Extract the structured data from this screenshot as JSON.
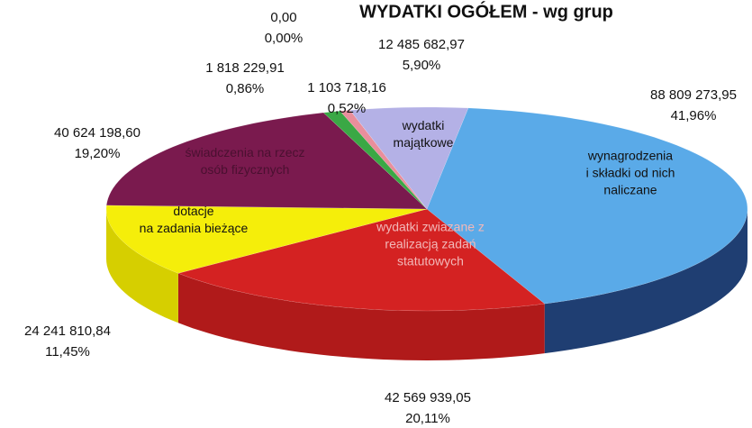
{
  "chart_data": {
    "type": "pie3d",
    "title": "WYDATKI OGÓŁEM - wg grup",
    "categories": [
      [
        "wynagrodzenia",
        "i składki od nich",
        "naliczane"
      ],
      [
        "wydatki zwiazane z",
        "realizacją zadań",
        "statutowych"
      ],
      [
        "dotacje",
        "na zadania bieżące"
      ],
      [
        "świadczenia na rzecz",
        "osób fizycznych"
      ],
      null,
      null,
      null,
      [
        "wydatki",
        "majątkowe"
      ]
    ],
    "values": [
      88809273.95,
      42569939.05,
      24241810.84,
      40624198.6,
      1818229.91,
      1103718.16,
      0,
      12485682.97
    ],
    "value_labels": [
      "88 809 273,95",
      "42 569 939,05",
      "24 241 810,84",
      "40 624 198,60",
      "1 818 229,91",
      "1 103 718,16",
      "0,00",
      "12 485 682,97"
    ],
    "percent_values": [
      41.96,
      20.11,
      11.45,
      19.2,
      0.86,
      0.52,
      0,
      5.9
    ],
    "percent_labels": [
      "41,96%",
      "20,11%",
      "11,45%",
      "19,20%",
      "0,86%",
      "0,52%",
      "0,00%",
      "5,90%"
    ],
    "colors": [
      "#5aaae8",
      "#d42222",
      "#f5ee0a",
      "#7a1a4e",
      "#3aa845",
      "#e98e9c",
      "#999999",
      "#b4b1e6"
    ],
    "side_colors": [
      "#1f3e72",
      "#b01a1a",
      "#d6cf00",
      "#5a1038",
      "#2a7d33",
      "#c06a78",
      "#777777",
      "#8a87c0"
    ]
  }
}
